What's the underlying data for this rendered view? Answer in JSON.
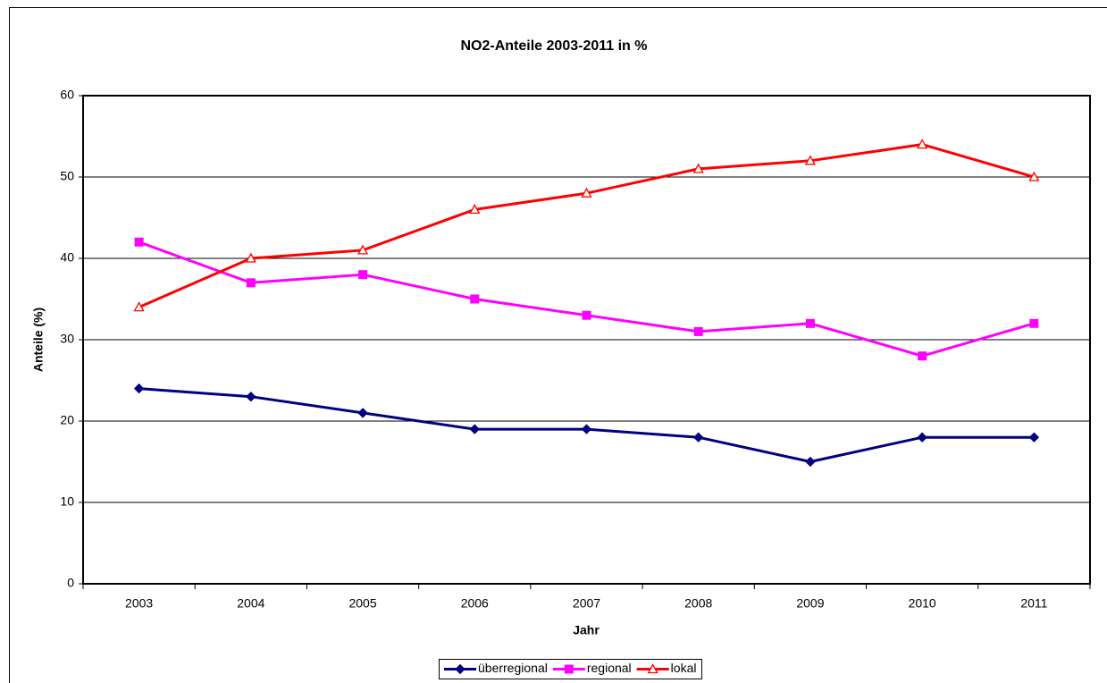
{
  "chart_data": {
    "type": "line",
    "title": "NO2-Anteile 2003-2011  in %",
    "x_label": "Jahr",
    "y_label": "Anteile (%)",
    "categories": [
      "2003",
      "2004",
      "2005",
      "2006",
      "2007",
      "2008",
      "2009",
      "2010",
      "2011"
    ],
    "series": [
      {
        "name": "überregional",
        "color": "#000080",
        "marker": "diamond",
        "values": [
          24,
          23,
          21,
          19,
          19,
          18,
          15,
          18,
          18
        ]
      },
      {
        "name": "regional",
        "color": "#ff00ff",
        "marker": "square",
        "values": [
          42,
          37,
          38,
          35,
          33,
          31,
          32,
          28,
          32
        ]
      },
      {
        "name": "lokal",
        "color": "#ff0000",
        "marker": "triangle",
        "values": [
          34,
          40,
          41,
          46,
          48,
          51,
          52,
          54,
          50
        ]
      }
    ],
    "ylim": [
      0,
      60
    ],
    "yticks": [
      0,
      10,
      20,
      30,
      40,
      50,
      60
    ],
    "grid": true,
    "legend": "bottom"
  }
}
